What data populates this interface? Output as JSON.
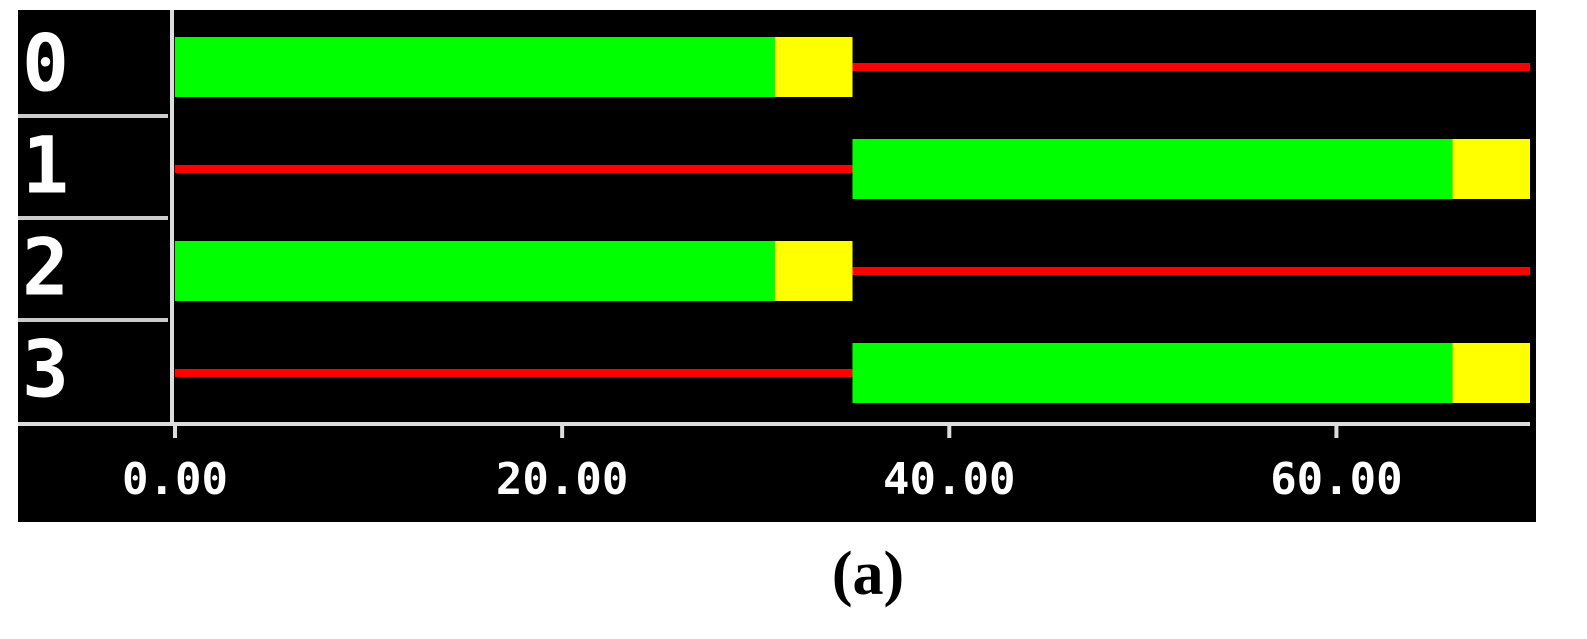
{
  "chart_data": {
    "type": "gantt",
    "categories": [
      "0",
      "1",
      "2",
      "3"
    ],
    "series": [
      {
        "color": "#00ff00",
        "mark": "bar",
        "starts": [
          0,
          35,
          0,
          35
        ],
        "ends": [
          31,
          66,
          31,
          66
        ]
      },
      {
        "color": "#ffff00",
        "mark": "bar",
        "starts": [
          31,
          66,
          31,
          66
        ],
        "ends": [
          35,
          70,
          35,
          70
        ]
      },
      {
        "color": "#ff0000",
        "mark": "line",
        "starts": [
          35,
          0,
          35,
          0
        ],
        "ends": [
          70,
          35,
          70,
          35
        ]
      }
    ],
    "xlim": [
      0,
      70
    ],
    "xticks": [
      {
        "value": 0,
        "label": "0.00"
      },
      {
        "value": 20,
        "label": "20.00"
      },
      {
        "value": 40,
        "label": "40.00"
      },
      {
        "value": 60,
        "label": "60.00"
      }
    ],
    "caption": "(a)"
  }
}
